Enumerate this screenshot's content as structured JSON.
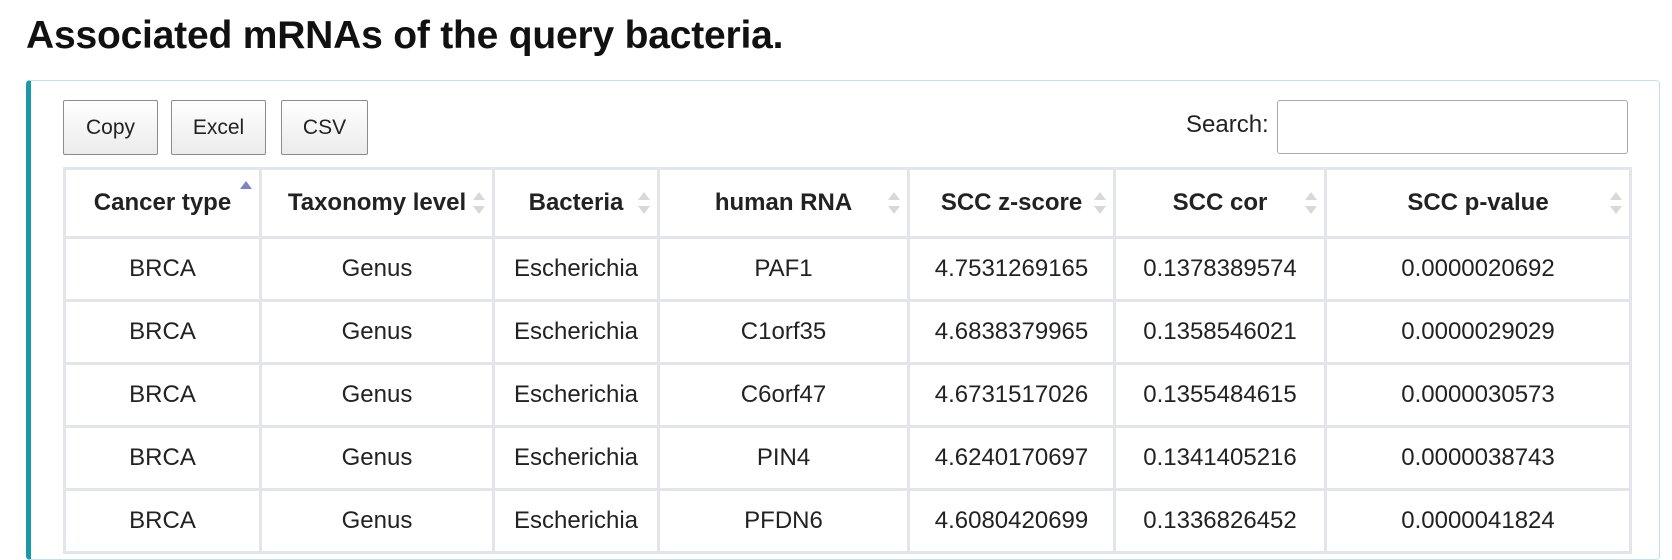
{
  "page": {
    "title": "Associated mRNAs of the query bacteria."
  },
  "toolbar": {
    "copy_label": "Copy",
    "excel_label": "Excel",
    "csv_label": "CSV",
    "search_label": "Search:",
    "search_value": ""
  },
  "theme": {
    "panel_accent": "#1a9aa8",
    "sort_active": "#7b84c9"
  },
  "table": {
    "columns": [
      {
        "label": "Cancer type",
        "sort": "ascending"
      },
      {
        "label": "Taxonomy level",
        "sort": "none"
      },
      {
        "label": "Bacteria",
        "sort": "none"
      },
      {
        "label": "human RNA",
        "sort": "none"
      },
      {
        "label": "SCC z-score",
        "sort": "none"
      },
      {
        "label": "SCC cor",
        "sort": "none"
      },
      {
        "label": "SCC p-value",
        "sort": "none"
      }
    ],
    "rows": [
      [
        "BRCA",
        "Genus",
        "Escherichia",
        "PAF1",
        "4.7531269165",
        "0.1378389574",
        "0.0000020692"
      ],
      [
        "BRCA",
        "Genus",
        "Escherichia",
        "C1orf35",
        "4.6838379965",
        "0.1358546021",
        "0.0000029029"
      ],
      [
        "BRCA",
        "Genus",
        "Escherichia",
        "C6orf47",
        "4.6731517026",
        "0.1355484615",
        "0.0000030573"
      ],
      [
        "BRCA",
        "Genus",
        "Escherichia",
        "PIN4",
        "4.6240170697",
        "0.1341405216",
        "0.0000038743"
      ],
      [
        "BRCA",
        "Genus",
        "Escherichia",
        "PFDN6",
        "4.6080420699",
        "0.1336826452",
        "0.0000041824"
      ]
    ]
  }
}
